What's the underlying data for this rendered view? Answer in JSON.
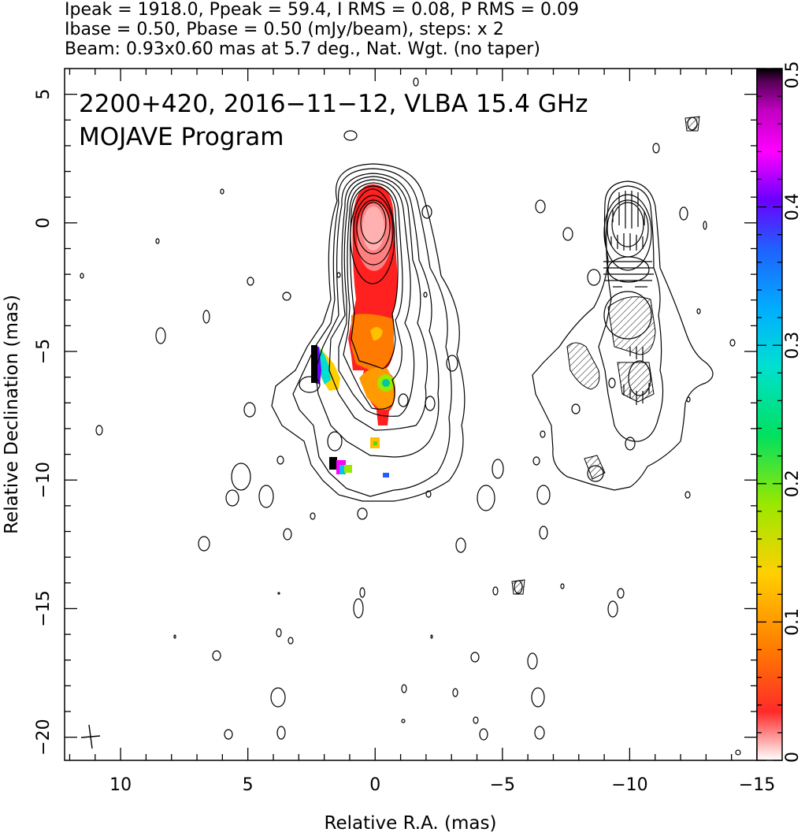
{
  "header": {
    "line1": "Ipeak = 1918.0, Ppeak = 59.4, I RMS = 0.08, P RMS = 0.09",
    "line2": "Ibase = 0.50, Pbase = 0.50 (mJy/beam), steps: x 2",
    "line3": "Beam: 0.93x0.60 mas at 5.7 deg., Nat. Wgt. (no taper)"
  },
  "annotations": {
    "source": "2200+420, 2016−11−12, VLBA 15.4 GHz",
    "program": "MOJAVE Program"
  },
  "colors": {
    "contour": "#000000",
    "colorbar_stops": [
      "#ffffff",
      "#ff2a2a",
      "#ff7a00",
      "#ffd000",
      "#9be800",
      "#00e060",
      "#00e0d0",
      "#00b0ff",
      "#2060ff",
      "#6a00ff",
      "#ff00ff",
      "#c000c0",
      "#5a005a",
      "#000000"
    ]
  },
  "chart_data": {
    "type": "image",
    "xlabel": "Relative R.A. (mas)",
    "ylabel": "Relative Declination (mas)",
    "xlim": [
      12.2,
      -15
    ],
    "ylim": [
      -20.9,
      6
    ],
    "xticks": [
      10,
      5,
      0,
      -5,
      -10,
      -15
    ],
    "yticks": [
      5,
      0,
      -5,
      -10,
      -15,
      -20
    ],
    "xtick_labels": [
      "10",
      "5",
      "0",
      "−5",
      "−10",
      "−15"
    ],
    "ytick_labels": [
      "5",
      "0",
      "−5",
      "−10",
      "−15",
      "−20"
    ],
    "colorbar": {
      "range": [
        0,
        0.5
      ],
      "ticks": [
        0,
        0.1,
        0.2,
        0.3,
        0.4,
        0.5
      ],
      "tick_labels": [
        "0",
        "0.1",
        "0.2",
        "0.3",
        "0.4",
        "0.5"
      ]
    },
    "intensity_peak_mJy_beam": 1918.0,
    "polarized_peak_mJy_beam": 59.4,
    "i_rms": 0.08,
    "p_rms": 0.09,
    "i_base": 0.5,
    "p_base": 0.5,
    "contour_step_factor": 2,
    "beam": {
      "major_mas": 0.93,
      "minor_mas": 0.6,
      "pa_deg": 5.7
    },
    "left_panel_core": [
      0,
      0
    ],
    "right_panel_core": [
      -10,
      0
    ],
    "fractional_pol_features": [
      {
        "x": 0,
        "y": -2,
        "value": 0.06
      },
      {
        "x": -0.3,
        "y": -6.2,
        "value": 0.22
      },
      {
        "x": 1.8,
        "y": -5.6,
        "value": 0.3
      },
      {
        "x": 1.2,
        "y": -9.6,
        "value": 0.28
      }
    ]
  }
}
